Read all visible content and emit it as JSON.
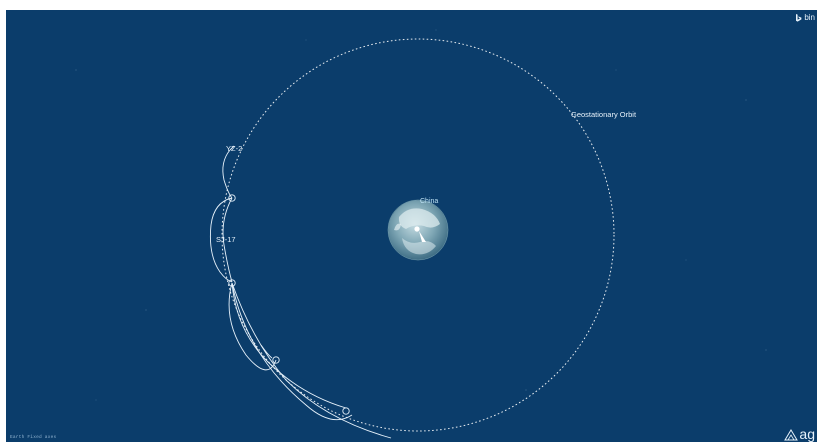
{
  "scene": {
    "orbit_label": "Geostationary Orbit",
    "earth_region_label": "China",
    "satellites": [
      {
        "name": "YZ-2"
      },
      {
        "name": "SJ-17"
      }
    ]
  },
  "branding": {
    "bing_text": "bin",
    "agi_text": "ag"
  },
  "status": {
    "reference_frame": "Earth Fixed axes"
  },
  "colors": {
    "background": "#0b3d6b",
    "orbit": "#ffffff",
    "earth": "#7fa7b5",
    "trajectory": "#e7f2fb"
  }
}
